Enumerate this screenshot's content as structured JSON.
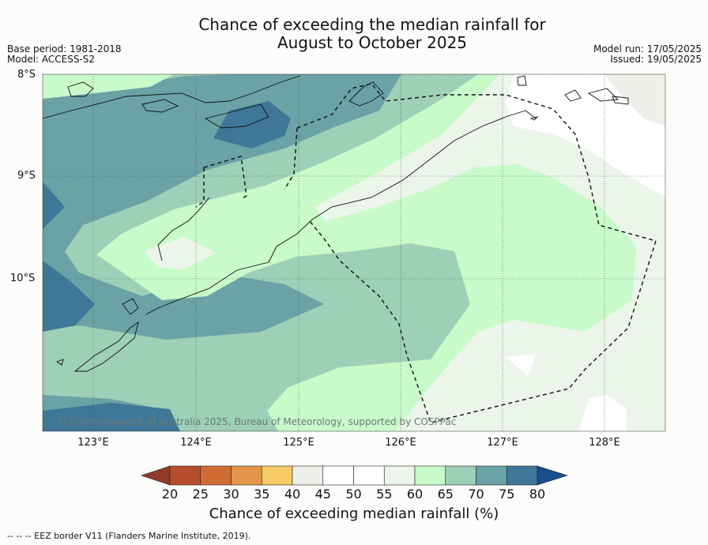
{
  "title_line1": "Chance of exceeding the median rainfall for",
  "title_line2": "August to October 2025",
  "base_period": "Base period: 1981-2018",
  "model": "Model: ACCESS-S2",
  "model_run": "Model run: 17/05/2025",
  "issued": "Issued: 19/05/2025",
  "lat_labels": [
    "8°S",
    "9°S",
    "10°S"
  ],
  "lon_labels": [
    "123°E",
    "124°E",
    "125°E",
    "126°E",
    "127°E",
    "128°E"
  ],
  "copyright": "© Commonwealth of Australia 2025, Bureau of Meteorology, supported by COSPPac",
  "colorbar": {
    "ticks": [
      "20",
      "25",
      "30",
      "35",
      "40",
      "45",
      "50",
      "55",
      "60",
      "65",
      "70",
      "75",
      "80"
    ],
    "label": "Chance of exceeding median rainfall (%)",
    "below_color": "#8e3b27",
    "colors": [
      "#b54c2b",
      "#cf6c35",
      "#e3964a",
      "#f8cb66",
      "#f0eeea",
      "#ffffff",
      "#ffffff",
      "#ebf5ea",
      "#c9fac9",
      "#9dd0b6",
      "#6aa2a5",
      "#3e7797"
    ],
    "above_color": "#1b4c8b"
  },
  "footnote": "--  --  -- EEZ border V11 (Flanders Marine Institute, 2019)."
}
